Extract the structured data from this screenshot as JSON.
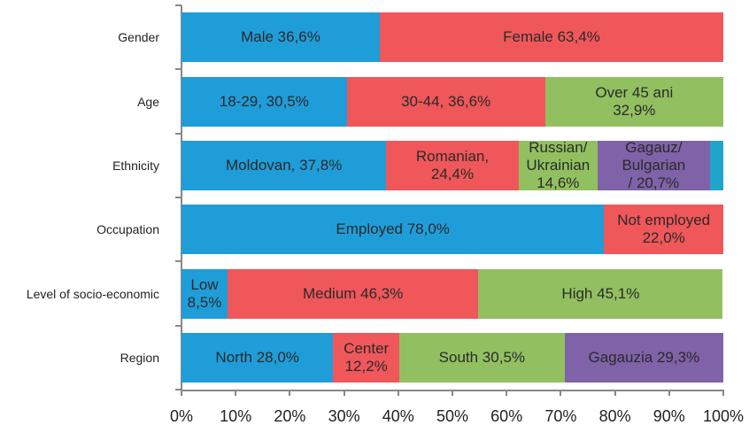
{
  "chart_data": {
    "type": "stacked_bar",
    "categories": [
      "Gender",
      "Age",
      "Ethnicity",
      "Occupation",
      "Level of socio-economic",
      "Region"
    ],
    "segments": [
      [
        {
          "value": 36.6,
          "label": "Male   36,6%",
          "color": "#1f9dd9"
        },
        {
          "value": 63.4,
          "label": "Female  63,4%",
          "color": "#f0575a"
        }
      ],
      [
        {
          "value": 30.5,
          "label": "18-29, 30,5%",
          "color": "#1f9dd9"
        },
        {
          "value": 36.6,
          "label": "30-44, 36,6%",
          "color": "#f0575a"
        },
        {
          "value": 32.9,
          "label": "Over 45 ani\n32,9%",
          "color": "#92c060"
        }
      ],
      [
        {
          "value": 37.8,
          "label": "Moldovan,   37,8%",
          "color": "#1f9dd9"
        },
        {
          "value": 24.4,
          "label": "Romanian,\n24,4%",
          "color": "#f0575a"
        },
        {
          "value": 14.6,
          "label": "Russian/\nUkrainian\n14,6%",
          "color": "#92c060"
        },
        {
          "value": 20.7,
          "label": "Gagauz/\nBulgarian\n/ 20,7%",
          "color": "#7f62a8"
        },
        {
          "value": 2.5,
          "color": "#1fa5c9"
        }
      ],
      [
        {
          "value": 78.0,
          "label": "Employed  78,0%",
          "color": "#1f9dd9"
        },
        {
          "value": 22.0,
          "label": "Not employed\n22,0%",
          "color": "#f0575a"
        }
      ],
      [
        {
          "value": 8.5,
          "label": "Low\n8,5%",
          "color": "#1f9dd9"
        },
        {
          "value": 46.3,
          "label": "Medium  46,3%",
          "color": "#f0575a"
        },
        {
          "value": 45.1,
          "label": "High  45,1%",
          "color": "#92c060"
        }
      ],
      [
        {
          "value": 28.0,
          "label": "North  28,0%",
          "color": "#1f9dd9"
        },
        {
          "value": 12.2,
          "label": "Center\n12,2%",
          "color": "#f0575a"
        },
        {
          "value": 30.5,
          "label": "South  30,5%",
          "color": "#92c060"
        },
        {
          "value": 29.3,
          "label": "Gagauzia  29,3%",
          "color": "#7f62a8"
        }
      ]
    ],
    "xlim": [
      0,
      100
    ],
    "xticks": [
      {
        "value": 0,
        "label": "0%"
      },
      {
        "value": 10,
        "label": "10%"
      },
      {
        "value": 20,
        "label": "20%"
      },
      {
        "value": 30,
        "label": "30%"
      },
      {
        "value": 40,
        "label": "40%"
      },
      {
        "value": 50,
        "label": "50%"
      },
      {
        "value": 60,
        "label": "60%"
      },
      {
        "value": 70,
        "label": "70%"
      },
      {
        "value": 80,
        "label": "80%"
      },
      {
        "value": 90,
        "label": "90%"
      },
      {
        "value": 100,
        "label": "100%"
      }
    ]
  }
}
